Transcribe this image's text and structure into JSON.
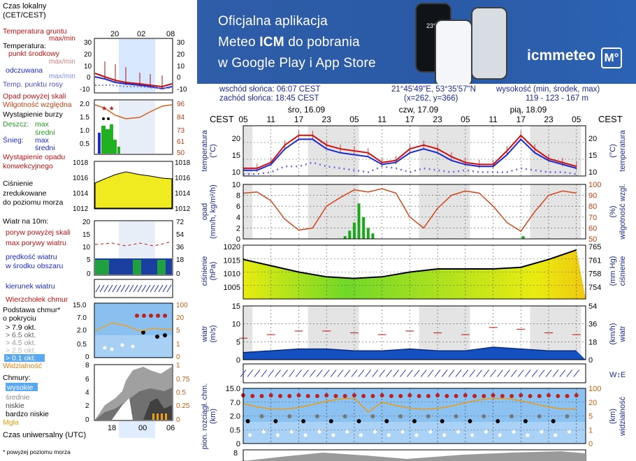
{
  "legend": {
    "time_local": "Czas lokalny\n(CET/CEST)",
    "time_local_ticks": [
      "20",
      "02",
      "08"
    ],
    "ground_temp": "Temperatura gruntu",
    "ground_temp_sub": "max/min",
    "temperature": "Temperatura:",
    "mid_point": "punkt środkowy",
    "max_min": "max/min",
    "feels_like": "odczuwana",
    "feels_like_sub": "max/min",
    "dew_point": "Temp. punktu rosy",
    "temp_ticks": [
      "30",
      "20",
      "10",
      "0",
      "-10"
    ],
    "precip_above": "Opad powyżej skali",
    "humidity": "Wilgotność względna",
    "storm": "Wystąpienie burzy",
    "rain": "Deszcz:",
    "rain_max": "max",
    "rain_mean": "średni",
    "snow": "Śnieg:",
    "snow_max": "max",
    "snow_mean": "średni",
    "precip_occurrence": "Wystąpienie opadu\nkonwekcyjnego",
    "precip_ticks_left": [
      "2.0",
      "1.5",
      "1.0",
      "0.5"
    ],
    "precip_ticks_right": [
      "96",
      "84",
      "73",
      "61",
      "50"
    ],
    "pressure": "Ciśnienie\nzredukowane\ndo poziomu morza",
    "pressure_ticks": [
      "1018",
      "1016",
      "1014",
      "1012"
    ],
    "wind_title": "Wiatr na 10m:",
    "gusts_above": "poryw powyżej skali",
    "max_gusts": "max porywy wiatru",
    "wind_speed": "prędkość wiatru\nw środku obszaru",
    "wind_ticks_left": [
      "20",
      "15",
      "10",
      "5",
      "0"
    ],
    "wind_ticks_right": [
      "72",
      "54",
      "36",
      "18",
      "0"
    ],
    "wind_dir": "kierunek wiatru",
    "cloud_top": "Wierzchołek chmur",
    "cloud_base": "Podstawa chmur*\no pokryciu",
    "cloud_base_items": [
      "> 7.9 okt.",
      "> 6.5 okt.",
      "> 4.5 okt.",
      "> 2.5 okt.",
      "> 0.1 okt."
    ],
    "cloud_ticks_left": [
      "15.0",
      "7.0",
      "2.0",
      "0.5",
      "0"
    ],
    "cloud_ticks_right": [
      "100",
      "20",
      "5",
      "1",
      "0"
    ],
    "visibility": "Widzialność",
    "clouds": "Chmury:",
    "cloud_high": "wysokie",
    "cloud_mid": "średnie",
    "cloud_low": "niskie",
    "cloud_very_low": "bardzo niskie",
    "fog": "Mgła",
    "cloud_cover_ticks_left": [
      "8",
      "6",
      "4",
      "2",
      "0"
    ],
    "cloud_cover_ticks_right": [
      "1",
      "0.75",
      "0.5",
      "0.25",
      "0"
    ],
    "utc": "Czas uniwersalny (UTC)",
    "utc_ticks": [
      "18",
      "00",
      "06"
    ],
    "footnote": "* powyżej poziomu morza"
  },
  "banner": {
    "line1": "Oficjalna aplikacja",
    "line2_pre": "Meteo ",
    "line2_bold": "ICM",
    "line2_post": " do pobrania",
    "line3": "w Google Play i App Store",
    "logo": "icmmeteo",
    "logo_badge": "M°",
    "phone_temp": "23°"
  },
  "info": {
    "sunrise": "wschód słońca: 06:07 CEST",
    "sunset": "zachód słońca: 18:45 CEST",
    "coords": "21°45'49\"E, 53°35'57\"N",
    "grid": "(x=262,  y=366)",
    "elevation_label": "wysokość (min, środek, max)",
    "elevation": "119 - 123 - 167 m"
  },
  "chart_data": [
    {
      "type": "line",
      "title": "temperatura",
      "ylabel": "temperatura (°C)",
      "ylim": [
        10,
        23
      ],
      "y_ticks": [
        "20",
        "15",
        "10"
      ],
      "timezone_label": "CEST",
      "days": [
        "śro, 16.09",
        "czw, 17.09",
        "pią, 18.09"
      ],
      "hour_ticks": [
        "05",
        "11",
        "17",
        "23",
        "05",
        "11",
        "17",
        "23",
        "05",
        "11",
        "17",
        "23",
        "05"
      ],
      "x_hours": [
        0,
        3,
        6,
        9,
        12,
        15,
        18,
        21,
        24,
        27,
        30,
        33,
        36,
        39,
        42,
        45,
        48,
        51,
        54,
        57,
        60,
        63,
        66,
        69,
        72
      ],
      "series": [
        {
          "name": "punkt środkowy",
          "color": "#d01010",
          "values": [
            12,
            12,
            13.5,
            18,
            20.5,
            20.5,
            18,
            17,
            16.5,
            16,
            13.5,
            14,
            17,
            18,
            17,
            15,
            13.5,
            13,
            13,
            16.5,
            20.5,
            17,
            14.5,
            13.5,
            12.5
          ]
        },
        {
          "name": "odczuwana",
          "color": "#1a2ad0",
          "values": [
            11.5,
            11.5,
            13,
            17,
            19.5,
            19.5,
            17,
            16,
            15.5,
            15,
            13,
            13.5,
            16,
            17,
            16,
            14,
            13,
            12.5,
            12.5,
            15.5,
            19.5,
            16,
            14,
            13,
            12
          ]
        },
        {
          "name": "Temp. punktu rosy",
          "color": "#6a6ae0",
          "values": [
            10.5,
            10.5,
            11,
            12.5,
            12.5,
            13.5,
            12.5,
            12,
            11.5,
            11,
            12.5,
            12,
            11,
            12,
            11.5,
            11,
            11.5,
            11,
            11,
            11,
            12,
            11.5,
            11,
            11,
            10.5
          ]
        }
      ]
    },
    {
      "type": "bar",
      "title": "opad",
      "ylabel": "opad (mm/h, kg/m²/h)",
      "y2label": "wilgotność wzgl. (%)",
      "ylim": [
        0,
        10
      ],
      "y_ticks": [
        "10",
        "8",
        "6",
        "4",
        "2",
        "0"
      ],
      "y2_ticks": [
        "100",
        "90",
        "80",
        "70",
        "60",
        "50"
      ],
      "x_hours": [
        0,
        3,
        6,
        9,
        12,
        15,
        18,
        21,
        24,
        27,
        30,
        33,
        36,
        39,
        42,
        45,
        48,
        51,
        54,
        57,
        60,
        63,
        66,
        69,
        72
      ],
      "humidity": [
        92,
        93,
        85,
        68,
        58,
        60,
        80,
        88,
        95,
        93,
        96,
        92,
        70,
        60,
        78,
        90,
        94,
        92,
        80,
        65,
        57,
        75,
        90,
        94,
        92
      ],
      "precip_bars": [
        {
          "h": 22,
          "v": 0.5
        },
        {
          "h": 23,
          "v": 1.5
        },
        {
          "h": 24,
          "v": 3.0
        },
        {
          "h": 25,
          "v": 6.5
        },
        {
          "h": 26,
          "v": 4.0
        },
        {
          "h": 27,
          "v": 2.0
        },
        {
          "h": 28,
          "v": 1.0
        },
        {
          "h": 60.5,
          "v": 0.5
        }
      ]
    },
    {
      "type": "area",
      "title": "ciśnienie",
      "ylabel": "ciśnienie (hPa)",
      "y2label": "ciśnienie (mm Hg)",
      "ylim": [
        1003,
        1020
      ],
      "y_ticks": [
        "1020",
        "1015",
        "1010",
        "1005"
      ],
      "y2_ticks": [
        "765",
        "761",
        "758",
        "754"
      ],
      "x_hours": [
        0,
        6,
        12,
        18,
        24,
        30,
        36,
        42,
        48,
        54,
        60,
        66,
        72
      ],
      "values": [
        1015.5,
        1013.5,
        1011.5,
        1010,
        1009.5,
        1010,
        1011.5,
        1012.5,
        1012.5,
        1012.5,
        1013,
        1015.5,
        1018.5
      ]
    },
    {
      "type": "area",
      "title": "wiatr",
      "ylabel": "wiatr (m/s)",
      "y2label": "wiatr (km/h)",
      "ylim": [
        0,
        15
      ],
      "y_ticks": [
        "15",
        "10",
        "5",
        "0"
      ],
      "y2_ticks": [
        "54",
        "36",
        "18",
        "0"
      ],
      "x_hours": [
        0,
        6,
        12,
        18,
        24,
        30,
        36,
        42,
        48,
        54,
        60,
        66,
        72
      ],
      "speed": [
        2,
        2.5,
        3,
        3,
        2.5,
        2.5,
        3,
        2.5,
        2.5,
        3.5,
        3,
        2.5,
        2.5
      ],
      "gusts": [
        6,
        7,
        8,
        8,
        7.5,
        7,
        8,
        7.5,
        7,
        9,
        8.5,
        7.5,
        7
      ]
    },
    {
      "type": "scatter",
      "title": "pion. rozciągł. chm. / widzialność",
      "ylabel": "pion. rozciągł. chm. (km)",
      "y2label": "widzialność (km)",
      "y_ticks": [
        "15.0",
        "7.0",
        "2.0",
        "0.5",
        "0"
      ],
      "y2_ticks": [
        "100",
        "20",
        "5",
        "1",
        "0"
      ]
    }
  ]
}
